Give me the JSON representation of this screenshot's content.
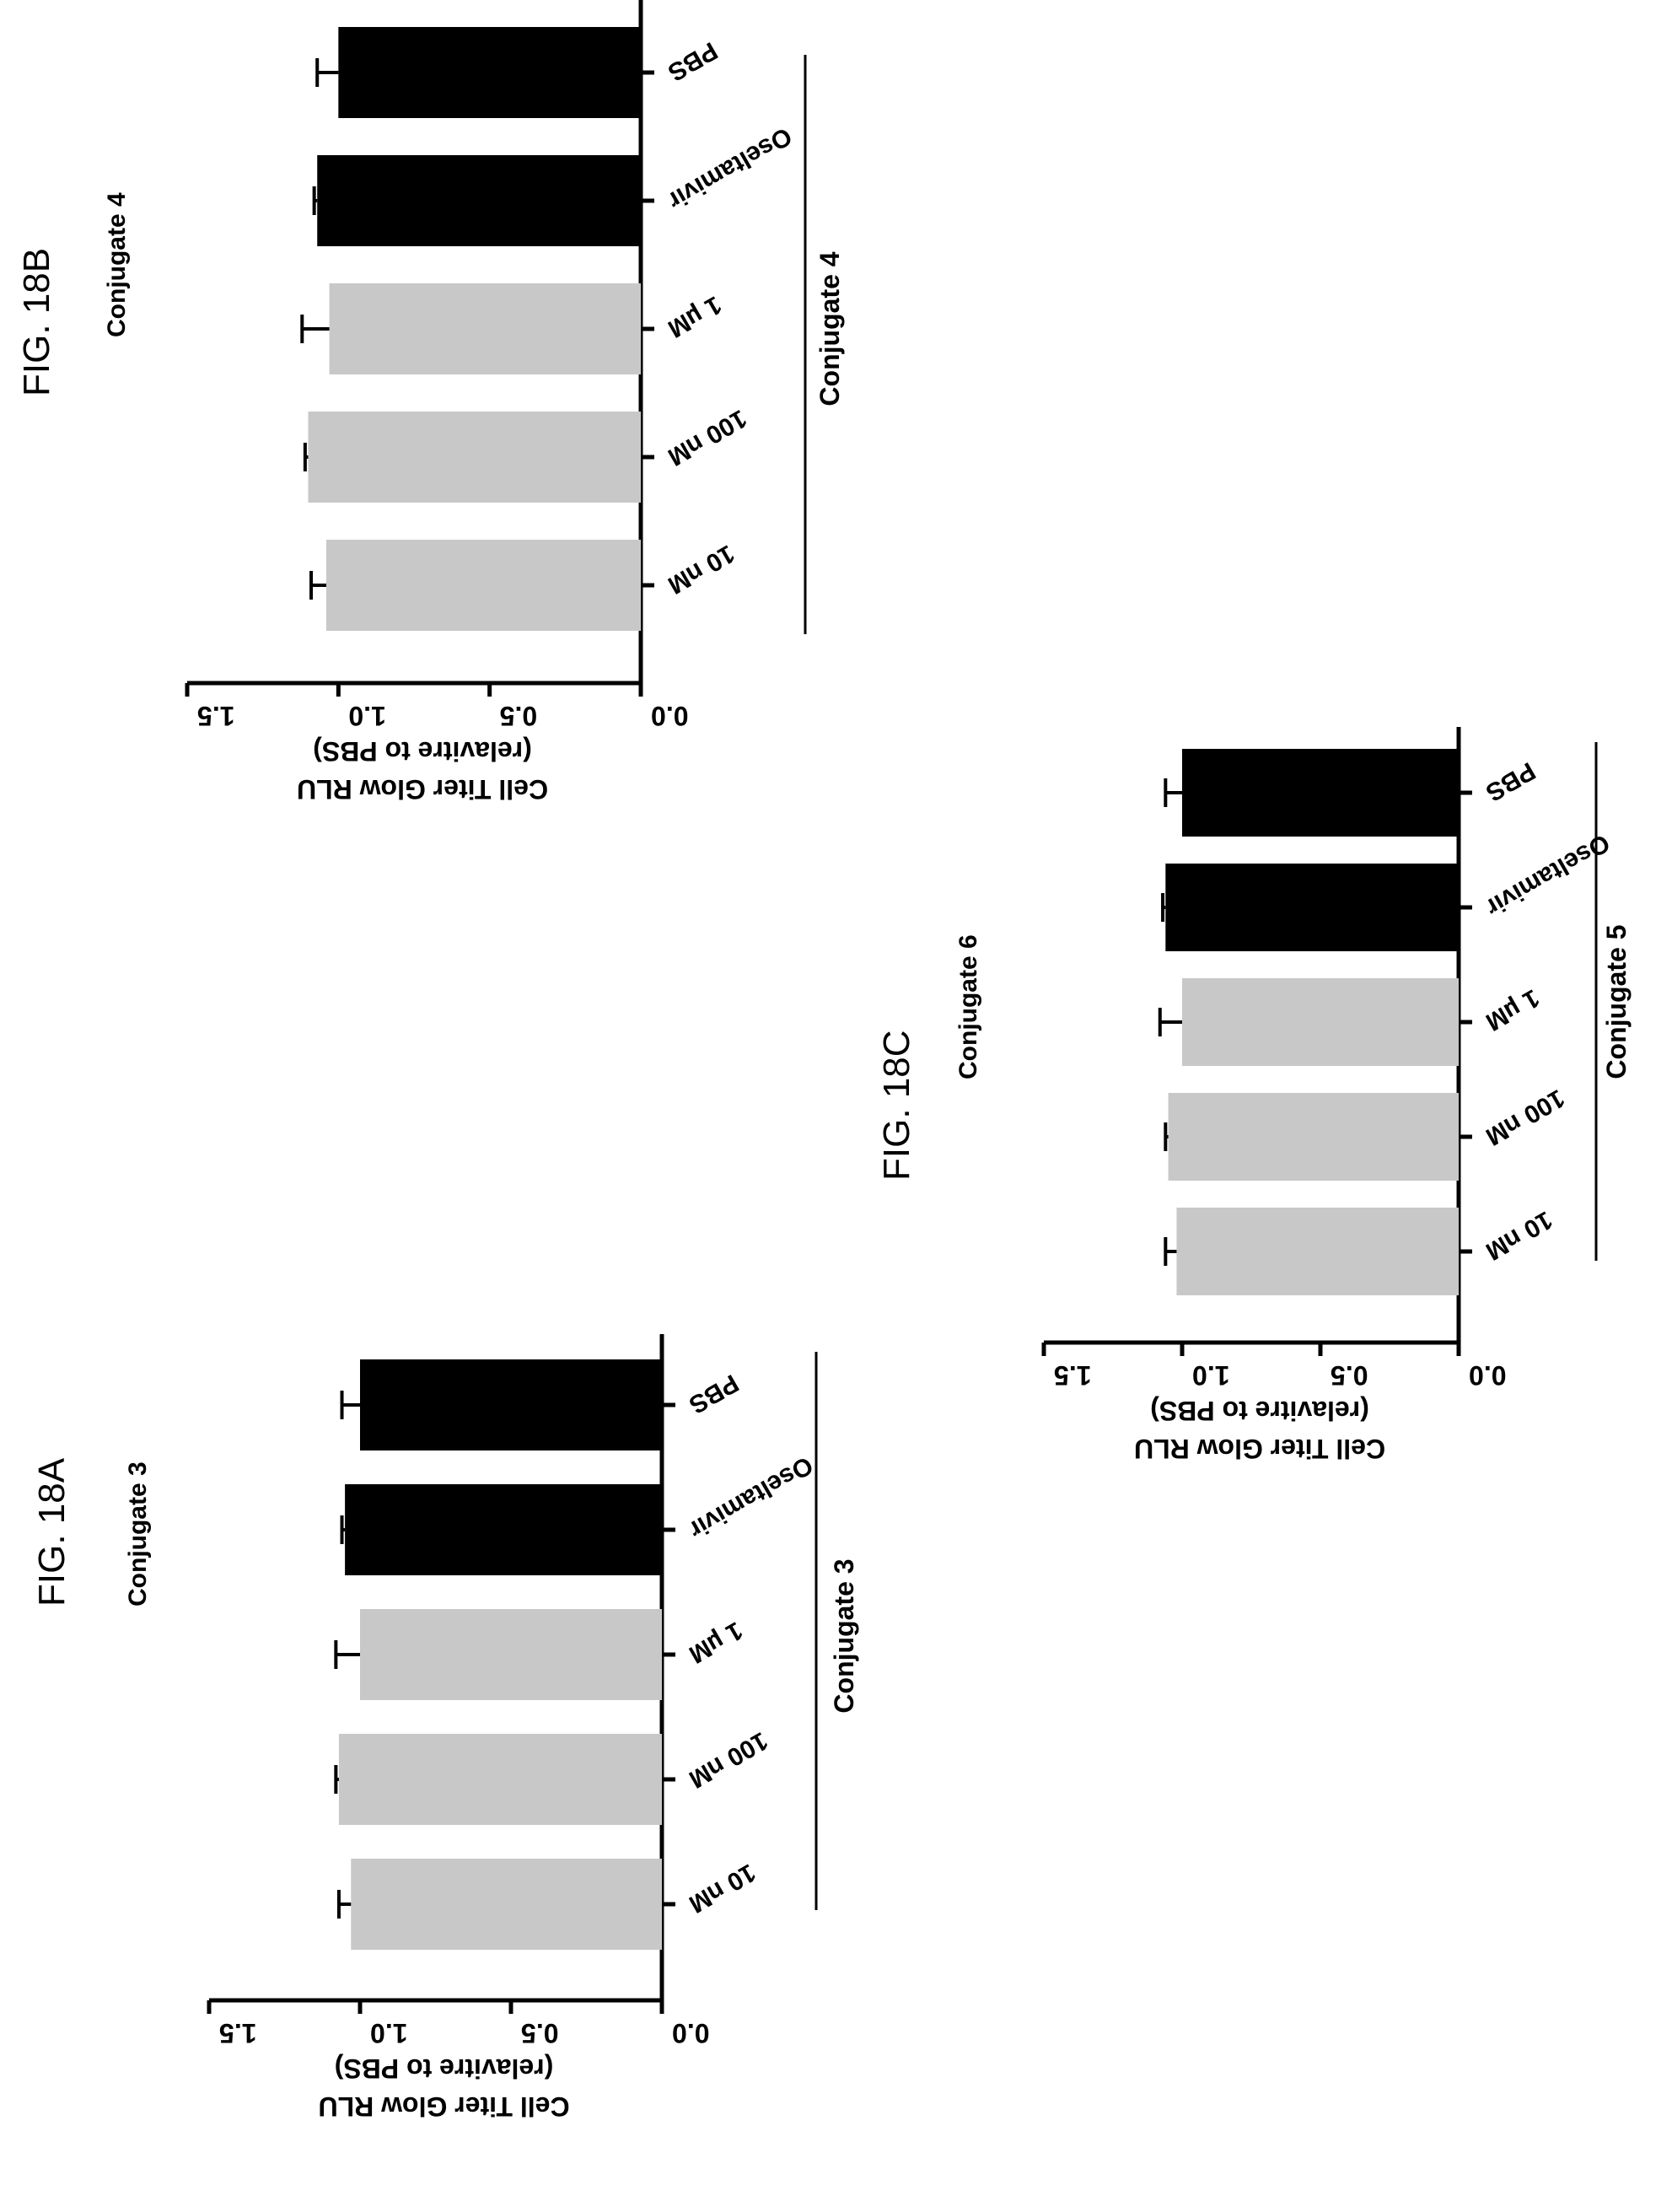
{
  "chart_data": [
    {
      "type": "bar",
      "title": "FIG. 18A",
      "subtitle": "Conjugate 3",
      "ylabel": "Cell Titer Glow RLU (relavitre to PBS)",
      "ylabel_line1": "Cell Titer Glow RLU",
      "ylabel_line2": "(relavitre to PBS)",
      "ylim": [
        0,
        1.5
      ],
      "yticks": [
        "0.0",
        "0.5",
        "1.0",
        "1.5"
      ],
      "ytick_values": [
        0,
        0.5,
        1.0,
        1.5
      ],
      "categories": [
        "PBS",
        "Oseltamivir",
        "1 µM",
        "100 nM",
        "10 nM"
      ],
      "values": [
        1.0,
        1.05,
        1.0,
        1.07,
        1.03
      ],
      "errors": [
        0.06,
        0.01,
        0.08,
        0.01,
        0.04
      ],
      "bar_colors": [
        "#000000",
        "#000000",
        "#c8c8c8",
        "#c8c8c8",
        "#c8c8c8"
      ],
      "group_label": "Conjugate 3",
      "grid": false
    },
    {
      "type": "bar",
      "title": "FIG. 18B",
      "subtitle": "Conjugate 4",
      "ylabel": "Cell Titer Glow RLU (relavitre to PBS)",
      "ylabel_line1": "Cell Titer Glow RLU",
      "ylabel_line2": "(relavitre to PBS)",
      "ylim": [
        0,
        1.5
      ],
      "yticks": [
        "0.0",
        "0.5",
        "1.0",
        "1.5"
      ],
      "ytick_values": [
        0,
        0.5,
        1.0,
        1.5
      ],
      "categories": [
        "PBS",
        "Oseltamivir",
        "1 µM",
        "100 nM",
        "10 nM"
      ],
      "values": [
        1.0,
        1.07,
        1.03,
        1.1,
        1.04
      ],
      "errors": [
        0.07,
        0.01,
        0.09,
        0.01,
        0.05
      ],
      "bar_colors": [
        "#000000",
        "#000000",
        "#c8c8c8",
        "#c8c8c8",
        "#c8c8c8"
      ],
      "group_label": "Conjugate 4",
      "grid": false
    },
    {
      "type": "bar",
      "title": "FIG. 18C",
      "subtitle": "Conjugate 6",
      "ylabel": "Cell Titer Glow RLU (relavitre to PBS)",
      "ylabel_line1": "Cell Titer Glow RLU",
      "ylabel_line2": "(relavitre to PBS)",
      "ylim": [
        0,
        1.5
      ],
      "yticks": [
        "0.0",
        "0.5",
        "1.0",
        "1.5"
      ],
      "ytick_values": [
        0,
        0.5,
        1.0,
        1.5
      ],
      "categories": [
        "PBS",
        "Oseltamivir",
        "1 µM",
        "100 nM",
        "10 nM"
      ],
      "values": [
        1.0,
        1.06,
        1.0,
        1.05,
        1.02
      ],
      "errors": [
        0.06,
        0.01,
        0.08,
        0.01,
        0.04
      ],
      "bar_colors": [
        "#000000",
        "#000000",
        "#c8c8c8",
        "#c8c8c8",
        "#c8c8c8"
      ],
      "group_label": "Conjugate 5",
      "grid": false
    }
  ]
}
